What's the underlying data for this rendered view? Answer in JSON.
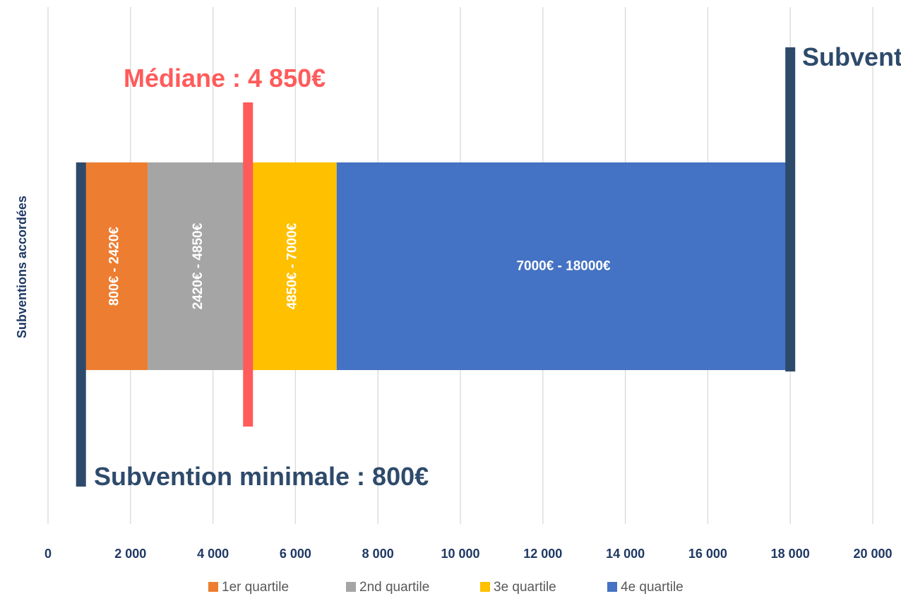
{
  "chart_data": {
    "type": "bar",
    "orientation": "horizontal-stacked",
    "ylabel": "Subventions accordées",
    "xlim": [
      0,
      20000
    ],
    "x_ticks": [
      0,
      2000,
      4000,
      6000,
      8000,
      10000,
      12000,
      14000,
      16000,
      18000,
      20000
    ],
    "x_tick_labels": [
      "0",
      "2 000",
      "4 000",
      "6 000",
      "8 000",
      "10 000",
      "12 000",
      "14 000",
      "16 000",
      "18 000",
      "20 000"
    ],
    "grid": true,
    "legend_position": "bottom",
    "series": [
      {
        "name": "1er quartile",
        "start": 800,
        "end": 2420,
        "label": "800€ - 2420€",
        "color": "#ED7D31"
      },
      {
        "name": "2nd quartile",
        "start": 2420,
        "end": 4850,
        "label": "2420€ - 4850€",
        "color": "#A5A5A5"
      },
      {
        "name": "3e quartile",
        "start": 4850,
        "end": 7000,
        "label": "4850€ - 7000€",
        "color": "#FFC000"
      },
      {
        "name": "4e quartile",
        "start": 7000,
        "end": 18000,
        "label": "7000€ - 18000€",
        "color": "#4472C4"
      }
    ],
    "markers": {
      "min": {
        "value": 800,
        "label": "Subvention minimale : 800€",
        "color": "#2E4A6B"
      },
      "median": {
        "value": 4850,
        "label": "Médiane : 4 850€",
        "color": "#FF5B5B"
      },
      "max": {
        "value": 18000,
        "label": "Subvent",
        "color": "#2E4A6B"
      }
    }
  }
}
